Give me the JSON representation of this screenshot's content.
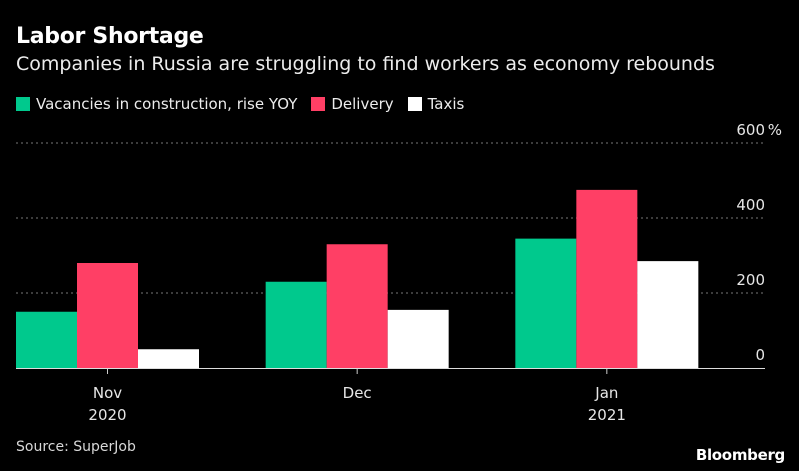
{
  "title": "Labor Shortage",
  "subtitle": "Companies in Russia are struggling to find workers as economy rebounds",
  "source": "Source: SuperJob",
  "brand": "Bloomberg",
  "chart_data": {
    "type": "bar",
    "categories": [
      [
        "Nov",
        "2020"
      ],
      [
        "Dec"
      ],
      [
        "Jan",
        "2021"
      ]
    ],
    "series": [
      {
        "name": "Vacancies in construction, rise YOY",
        "color": "#00c98d",
        "values": [
          150,
          230,
          345
        ]
      },
      {
        "name": "Delivery",
        "color": "#ff3f65",
        "values": [
          280,
          330,
          475
        ]
      },
      {
        "name": "Taxis",
        "color": "#ffffff",
        "values": [
          50,
          155,
          285
        ]
      }
    ],
    "ylim": [
      0,
      600
    ],
    "yticks": [
      0,
      200,
      400,
      600
    ],
    "yunit": "%",
    "grid": true,
    "axis_side": "right",
    "legend_position": "top-left"
  }
}
